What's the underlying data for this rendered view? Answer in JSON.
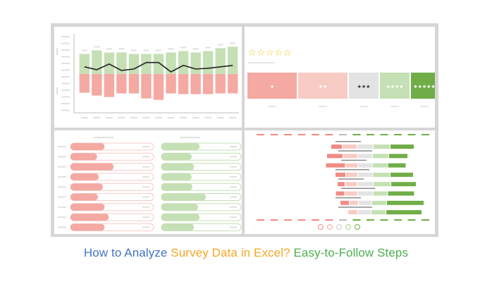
{
  "caption": {
    "part1": "How to Analyze ",
    "part2": "Survey Data in Excel?",
    "part3": " Easy-to-Follow Steps",
    "color1": "#4472c4",
    "color2": "#f5a623",
    "color3": "#4caf50"
  },
  "colors": {
    "green_light": "#c5e0b4",
    "green": "#a9d18e",
    "green_dark": "#70ad47",
    "red_light": "#f8cbc4",
    "red": "#f4a9a2",
    "red_dark": "#f08c85",
    "grey": "#e3e3e3",
    "star": "#f5c518"
  },
  "chart_data": [
    {
      "type": "bar",
      "subtype": "diverging-stacked-bar-with-line",
      "categories": [
        "",
        "",
        "",
        "",
        "",
        "",
        "",
        "",
        "",
        "",
        "",
        "",
        ""
      ],
      "series": [
        {
          "values": [
            28,
            33,
            30,
            30,
            28,
            28,
            28,
            30,
            32,
            30,
            32,
            36,
            38
          ]
        },
        {
          "values": [
            -26,
            -30,
            -32,
            -27,
            -27,
            -34,
            -36,
            -27,
            -28,
            -28,
            -28,
            -27,
            -27
          ]
        },
        {
          "type": "line",
          "values": [
            10,
            6,
            14,
            5,
            7,
            16,
            16,
            3,
            12,
            7,
            8,
            10,
            12
          ]
        }
      ],
      "ylim": [
        -50,
        55
      ],
      "grid": false
    },
    {
      "type": "bar",
      "subtype": "star-rating-breakdown",
      "title_stars": 5,
      "categories": [
        "★",
        "★★",
        "★★★",
        "★★★★",
        "★★★★★"
      ],
      "values": [
        70,
        70,
        42,
        42,
        38
      ]
    },
    {
      "type": "bar",
      "subtype": "progress-bars",
      "groups": [
        {
          "values": [
            0.41,
            0.32,
            0.52,
            0.34,
            0.39,
            0.33,
            0.41,
            0.46,
            0.41
          ]
        },
        {
          "values": [
            0.48,
            0.38,
            0.41,
            0.38,
            0.39,
            0.56,
            0.46,
            0.48,
            0.41
          ]
        }
      ]
    },
    {
      "type": "bar",
      "subtype": "likert-diverging",
      "rows": [
        {
          "segments": [
            15,
            20,
            22,
            23,
            33
          ]
        },
        {
          "segments": [
            22,
            20,
            20,
            22,
            26
          ]
        },
        {
          "segments": [
            27,
            17,
            19,
            21,
            25
          ]
        },
        {
          "segments": [
            14,
            16,
            20,
            24,
            32
          ]
        },
        {
          "segments": [
            10,
            16,
            22,
            24,
            35
          ]
        },
        {
          "segments": [
            12,
            17,
            21,
            20,
            37
          ]
        },
        {
          "segments": [
            12,
            12,
            18,
            20,
            52
          ]
        },
        {
          "segments": [
            0,
            13,
            18,
            20,
            50
          ]
        }
      ],
      "emoji_scale": 5
    }
  ]
}
